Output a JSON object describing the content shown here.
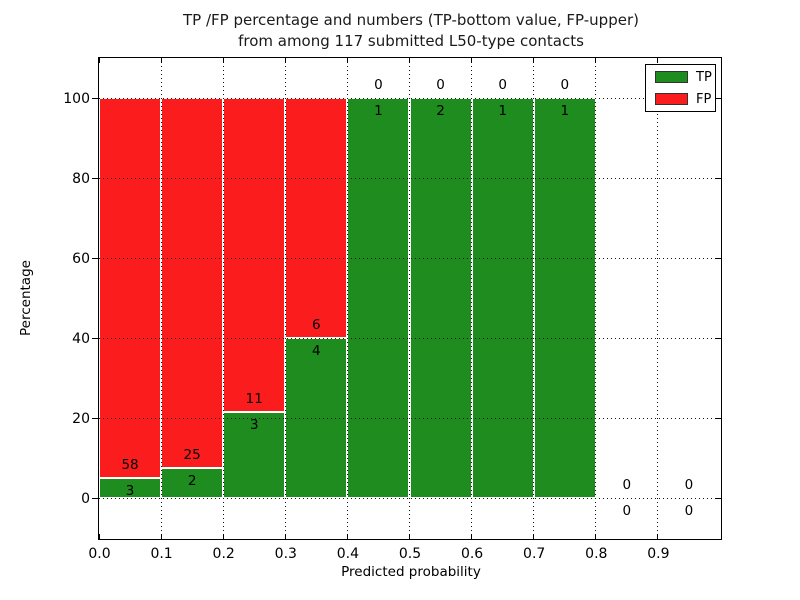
{
  "title": {
    "line1": "TP /FP percentage and numbers (TP-bottom value, FP-upper)",
    "line2": "from among 117 submitted L50-type contacts"
  },
  "axes": {
    "xlabel": "Predicted probability",
    "ylabel": "Percentage"
  },
  "legend": {
    "position": "upper right",
    "items": [
      {
        "label": "TP",
        "color": "#1e8c1e"
      },
      {
        "label": "FP",
        "color": "#fb1d1d"
      }
    ]
  },
  "chart_data": {
    "type": "bar",
    "stacked": true,
    "unit": "percent",
    "title": "TP /FP percentage and numbers (TP-bottom value, FP-upper) from among 117 submitted L50-type contacts",
    "xlabel": "Predicted probability",
    "ylabel": "Percentage",
    "total_submitted_contacts": 117,
    "xlim": [
      0.0,
      1.0
    ],
    "ylim": [
      -10,
      110
    ],
    "bin_width": 0.1,
    "bin_starts": [
      0.0,
      0.1,
      0.2,
      0.3,
      0.4,
      0.5,
      0.6,
      0.7,
      0.8,
      0.9
    ],
    "xticks": [
      0.0,
      0.1,
      0.2,
      0.3,
      0.4,
      0.5,
      0.6,
      0.7,
      0.8,
      0.9
    ],
    "yticks": [
      0,
      20,
      40,
      60,
      80,
      100
    ],
    "xtick_labels": [
      "0.0",
      "0.1",
      "0.2",
      "0.3",
      "0.4",
      "0.5",
      "0.6",
      "0.7",
      "0.8",
      "0.9"
    ],
    "ytick_labels": [
      "0",
      "20",
      "40",
      "60",
      "80",
      "100"
    ],
    "grid": "dotted, both axes, on top of bars",
    "legend_position": "upper right",
    "series": [
      {
        "name": "TP",
        "color": "#1e8c1e",
        "counts": [
          3,
          2,
          3,
          4,
          1,
          2,
          1,
          1,
          0,
          0
        ],
        "percent": [
          4.92,
          7.41,
          21.43,
          40.0,
          100.0,
          100.0,
          100.0,
          100.0,
          0.0,
          0.0
        ]
      },
      {
        "name": "FP",
        "color": "#fb1d1d",
        "counts": [
          58,
          25,
          11,
          6,
          0,
          0,
          0,
          0,
          0,
          0
        ],
        "percent": [
          95.08,
          92.59,
          78.57,
          60.0,
          0.0,
          0.0,
          0.0,
          0.0,
          0.0,
          0.0
        ]
      }
    ]
  }
}
